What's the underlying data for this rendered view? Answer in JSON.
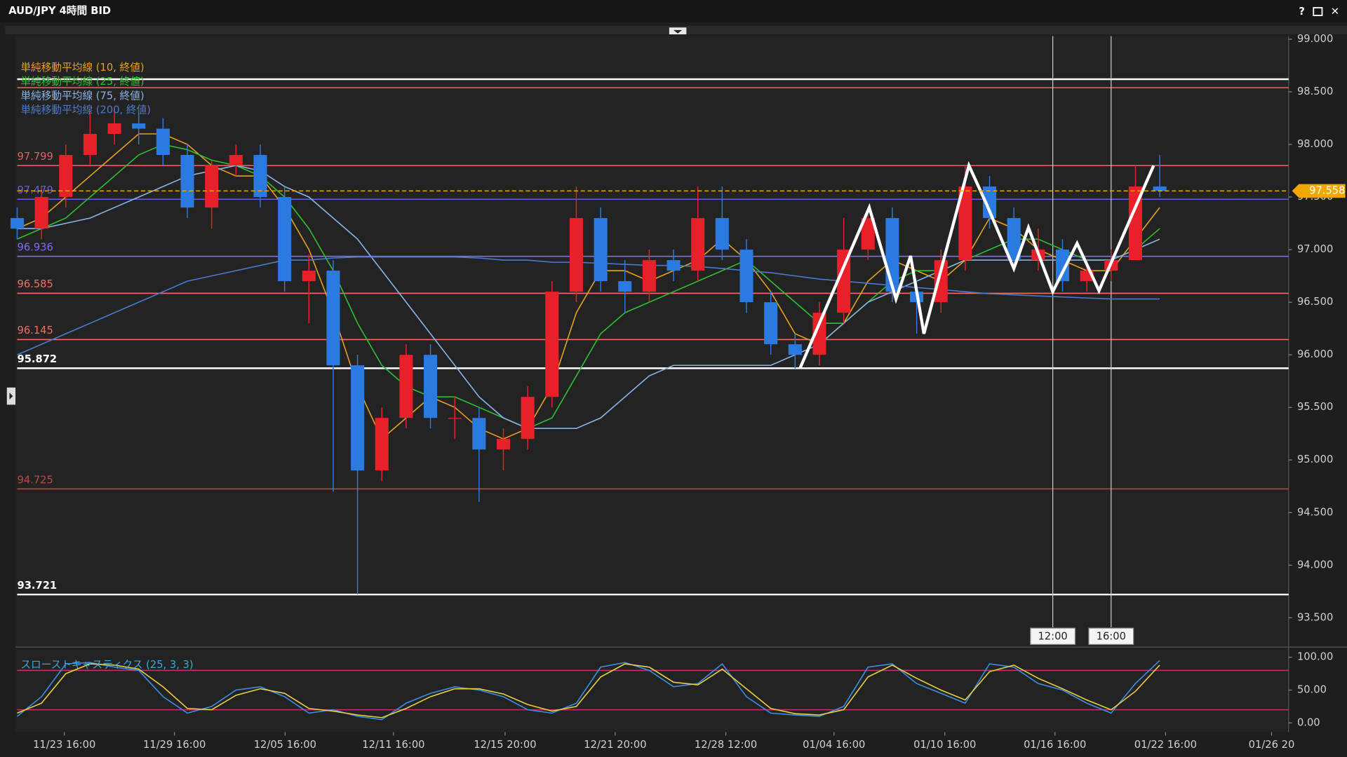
{
  "chart_data": {
    "type": "candlestick",
    "title": "AUD/JPY 4時間 BID",
    "up_color": "#e8202a",
    "down_color": "#2a7ae0",
    "open": [
      97.3,
      97.2,
      97.5,
      97.9,
      98.1,
      98.2,
      98.15,
      97.9,
      97.4,
      97.8,
      97.9,
      97.5,
      96.7,
      96.8,
      95.9,
      94.9,
      95.4,
      96.0,
      95.4,
      95.4,
      95.1,
      95.2,
      95.6,
      96.6,
      97.3,
      96.7,
      96.6,
      96.9,
      96.8,
      97.3,
      97.0,
      96.5,
      96.1,
      96.0,
      96.4,
      97.0,
      97.3,
      96.6,
      96.5,
      96.9,
      97.6,
      97.3,
      96.9,
      97.0,
      96.7,
      96.8,
      96.9,
      97.6
    ],
    "high": [
      97.4,
      97.6,
      98.0,
      98.3,
      98.35,
      98.3,
      98.25,
      98.0,
      97.85,
      98.0,
      98.0,
      97.6,
      96.95,
      96.9,
      96.0,
      95.5,
      96.1,
      96.1,
      95.6,
      95.5,
      95.3,
      95.7,
      96.7,
      97.6,
      97.4,
      96.9,
      97.0,
      97.0,
      97.6,
      97.6,
      97.1,
      96.6,
      96.2,
      96.5,
      97.3,
      97.4,
      97.4,
      96.7,
      97.0,
      97.8,
      97.7,
      97.4,
      97.2,
      97.1,
      96.9,
      97.0,
      97.8,
      97.9
    ],
    "low": [
      97.1,
      97.1,
      97.4,
      97.8,
      98.0,
      98.0,
      97.8,
      97.3,
      97.2,
      97.7,
      97.4,
      96.6,
      96.3,
      94.7,
      93.721,
      94.8,
      95.3,
      95.3,
      95.2,
      94.6,
      94.9,
      95.1,
      95.5,
      96.5,
      96.6,
      96.4,
      96.5,
      96.7,
      96.7,
      96.9,
      96.4,
      96.0,
      95.87,
      95.9,
      96.3,
      96.9,
      96.5,
      96.2,
      96.4,
      96.8,
      97.2,
      96.8,
      96.8,
      96.6,
      96.6,
      96.7,
      96.9,
      97.5
    ],
    "close": [
      97.2,
      97.5,
      97.9,
      98.1,
      98.2,
      98.15,
      97.9,
      97.4,
      97.8,
      97.9,
      97.5,
      96.7,
      96.8,
      95.9,
      94.9,
      95.4,
      96.0,
      95.4,
      95.4,
      95.1,
      95.2,
      95.6,
      96.6,
      97.3,
      96.7,
      96.6,
      96.9,
      96.8,
      97.3,
      97.0,
      96.5,
      96.1,
      96.0,
      96.4,
      97.0,
      97.3,
      96.6,
      96.5,
      96.9,
      97.6,
      97.3,
      96.9,
      97.0,
      96.7,
      96.8,
      96.9,
      97.6,
      97.558
    ],
    "series": [
      {
        "name": "単純移動平均線 (10, 終値)",
        "color": "#e8a020",
        "values": [
          97.2,
          97.3,
          97.5,
          97.7,
          97.9,
          98.1,
          98.1,
          98.0,
          97.8,
          97.7,
          97.7,
          97.4,
          97.0,
          96.4,
          95.7,
          95.2,
          95.4,
          95.6,
          95.5,
          95.3,
          95.2,
          95.3,
          95.7,
          96.4,
          96.8,
          96.8,
          96.7,
          96.8,
          96.9,
          97.1,
          96.9,
          96.6,
          96.2,
          96.1,
          96.3,
          96.7,
          96.9,
          96.8,
          96.7,
          96.9,
          97.3,
          97.2,
          97.0,
          96.9,
          96.8,
          96.8,
          97.1,
          97.4
        ]
      },
      {
        "name": "単純移動平均線 (25, 終値)",
        "color": "#2ec02e",
        "values": [
          97.1,
          97.2,
          97.3,
          97.5,
          97.7,
          97.9,
          98.0,
          97.95,
          97.85,
          97.8,
          97.7,
          97.5,
          97.2,
          96.8,
          96.3,
          95.9,
          95.7,
          95.6,
          95.6,
          95.5,
          95.4,
          95.3,
          95.4,
          95.8,
          96.2,
          96.4,
          96.5,
          96.6,
          96.7,
          96.8,
          96.9,
          96.7,
          96.5,
          96.3,
          96.3,
          96.5,
          96.7,
          96.8,
          96.8,
          96.9,
          97.0,
          97.1,
          97.1,
          97.0,
          96.9,
          96.9,
          97.0,
          97.2
        ]
      },
      {
        "name": "単純移動平均線 (75, 終値)",
        "color": "#8ab4e8",
        "values": [
          97.2,
          97.2,
          97.25,
          97.3,
          97.4,
          97.5,
          97.6,
          97.7,
          97.75,
          97.8,
          97.75,
          97.6,
          97.5,
          97.3,
          97.1,
          96.8,
          96.5,
          96.2,
          95.9,
          95.6,
          95.4,
          95.3,
          95.3,
          95.3,
          95.4,
          95.6,
          95.8,
          95.9,
          95.9,
          95.9,
          95.9,
          95.9,
          96.0,
          96.1,
          96.3,
          96.5,
          96.6,
          96.7,
          96.8,
          96.9,
          96.9,
          96.9,
          96.9,
          96.9,
          96.9,
          96.9,
          97.0,
          97.1
        ]
      },
      {
        "name": "単純移動平均線 (200, 終値)",
        "color": "#4a7ad0",
        "values": [
          96.0,
          96.1,
          96.2,
          96.3,
          96.4,
          96.5,
          96.6,
          96.7,
          96.75,
          96.8,
          96.85,
          96.9,
          96.9,
          96.92,
          96.93,
          96.93,
          96.93,
          96.93,
          96.93,
          96.92,
          96.9,
          96.9,
          96.88,
          96.88,
          96.87,
          96.86,
          96.85,
          96.85,
          96.84,
          96.82,
          96.8,
          96.78,
          96.75,
          96.72,
          96.7,
          96.68,
          96.66,
          96.64,
          96.62,
          96.6,
          96.58,
          96.57,
          96.56,
          96.55,
          96.54,
          96.53,
          96.53,
          96.53
        ]
      }
    ],
    "levels": [
      {
        "value": 98.62,
        "color": "#ffffff"
      },
      {
        "value": 98.54,
        "color": "#e06060"
      },
      {
        "value": 97.799,
        "color": "#e06060"
      },
      {
        "value": 97.479,
        "color": "#6060e0"
      },
      {
        "value": 96.936,
        "color": "#7b6cff"
      },
      {
        "value": 96.585,
        "color": "#f07060"
      },
      {
        "value": 96.145,
        "color": "#f07060"
      },
      {
        "value": 95.872,
        "color": "#ffffff"
      },
      {
        "value": 94.725,
        "color": "#c04848"
      },
      {
        "value": 93.721,
        "color": "#ffffff"
      }
    ],
    "current_price": 97.558,
    "current_color": "#f0a800",
    "zigzag": {
      "color": "#ffffff",
      "x": [
        32.2,
        35.05,
        36.15,
        36.75,
        37.3,
        39.15,
        39.9,
        41.0,
        41.6,
        42.6,
        43.6,
        44.5,
        46.75
      ],
      "y": [
        95.87,
        97.4,
        96.53,
        96.94,
        96.2,
        97.8,
        97.42,
        96.82,
        97.21,
        96.6,
        97.06,
        96.61,
        97.8
      ]
    },
    "markers": [
      {
        "label": "12:00",
        "x": 42.6
      },
      {
        "label": "16:00",
        "x": 45.0
      }
    ],
    "xlim": [
      0,
      52.3
    ],
    "xticks": [
      {
        "value": 1.94,
        "label": "11/23 16:00"
      },
      {
        "value": 6.47,
        "label": "11/29 16:00"
      },
      {
        "value": 11.02,
        "label": "12/05 16:00"
      },
      {
        "value": 15.48,
        "label": "12/11 16:00"
      },
      {
        "value": 20.07,
        "label": "12/15 20:00"
      },
      {
        "value": 24.6,
        "label": "12/21 20:00"
      },
      {
        "value": 29.15,
        "label": "12/28 12:00"
      },
      {
        "value": 33.6,
        "label": "01/04 16:00"
      },
      {
        "value": 38.16,
        "label": "01/10 16:00"
      },
      {
        "value": 42.69,
        "label": "01/16 16:00"
      },
      {
        "value": 47.24,
        "label": "01/22 16:00"
      },
      {
        "value": 51.6,
        "label": "01/26 20"
      }
    ],
    "ylim": [
      93.23,
      99.03
    ],
    "yticks": [
      {
        "value": 99,
        "label": "99.000"
      },
      {
        "value": 98.5,
        "label": "98.500"
      },
      {
        "value": 98,
        "label": "98.000"
      },
      {
        "value": 97.5,
        "label": "97.500"
      },
      {
        "value": 97,
        "label": "97.000"
      },
      {
        "value": 96.5,
        "label": "96.500"
      },
      {
        "value": 96,
        "label": "96.000"
      },
      {
        "value": 95.5,
        "label": "95.500"
      },
      {
        "value": 95,
        "label": "95.000"
      },
      {
        "value": 94.5,
        "label": "94.500"
      },
      {
        "value": 94,
        "label": "94.000"
      },
      {
        "value": 93.5,
        "label": "93.500"
      }
    ],
    "stochastic": {
      "title": "スローストキャスティクス (25, 3, 3)",
      "ylim": [
        -14,
        113
      ],
      "yticks": [
        {
          "value": 100,
          "label": "100.00"
        },
        {
          "value": 50,
          "label": "50.00"
        },
        {
          "value": 0,
          "label": "0.00"
        }
      ],
      "levels": [
        80,
        20
      ],
      "level_color": "#c0306a",
      "series": [
        {
          "color": "#3a8ee8",
          "values": [
            10,
            40,
            90,
            92,
            85,
            80,
            40,
            15,
            25,
            50,
            55,
            40,
            15,
            20,
            10,
            5,
            30,
            45,
            55,
            50,
            40,
            20,
            15,
            30,
            85,
            92,
            80,
            55,
            60,
            90,
            40,
            15,
            12,
            10,
            25,
            85,
            90,
            60,
            45,
            30,
            90,
            85,
            60,
            50,
            30,
            15,
            60,
            95
          ]
        },
        {
          "color": "#e8d040",
          "values": [
            15,
            30,
            75,
            90,
            88,
            82,
            55,
            22,
            20,
            42,
            52,
            45,
            22,
            18,
            12,
            8,
            22,
            40,
            52,
            52,
            44,
            28,
            18,
            25,
            70,
            90,
            85,
            62,
            58,
            82,
            52,
            22,
            14,
            12,
            20,
            70,
            88,
            68,
            50,
            35,
            78,
            88,
            68,
            52,
            35,
            20,
            48,
            88
          ]
        }
      ]
    }
  }
}
